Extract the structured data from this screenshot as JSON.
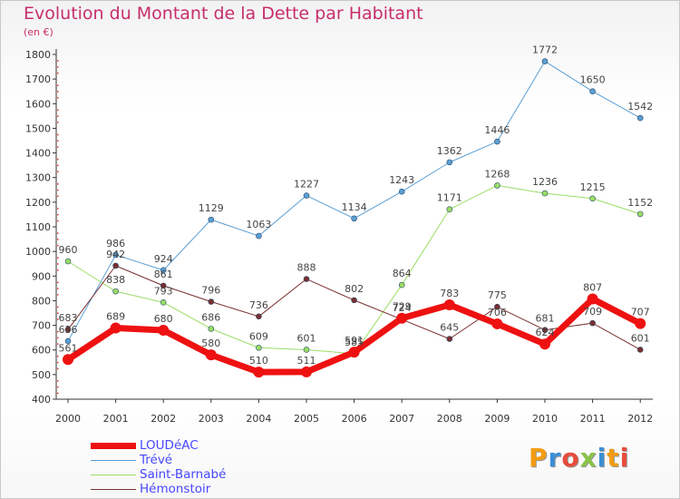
{
  "title": "Evolution du Montant de la Dette par Habitant",
  "subtitle": "(en €)",
  "brand": {
    "text": "Proxiti",
    "letters": [
      "P",
      "r",
      "o",
      "x",
      "i",
      "t",
      "i"
    ],
    "colors": [
      "#f39c12",
      "#3b8fd6",
      "#e74c3c",
      "#8bc34a",
      "#3b8fd6",
      "#f39c12",
      "#e74c3c"
    ]
  },
  "chart_data": {
    "type": "line",
    "categories": [
      "2000",
      "2001",
      "2002",
      "2003",
      "2004",
      "2005",
      "2006",
      "2007",
      "2008",
      "2009",
      "2010",
      "2011",
      "2012"
    ],
    "ylim": [
      400,
      1800
    ],
    "yticks": [
      400,
      500,
      600,
      700,
      800,
      900,
      1000,
      1100,
      1200,
      1300,
      1400,
      1500,
      1600,
      1700,
      1800
    ],
    "grid": false,
    "legend_position": "bottom-left",
    "series": [
      {
        "name": "LOUDéAC",
        "color": "#ee1111",
        "width": 7,
        "values": [
          561,
          689,
          680,
          580,
          510,
          511,
          591,
          729,
          783,
          706,
          624,
          807,
          707
        ],
        "labels": [
          "561",
          "689",
          "680",
          "580",
          "510",
          "511",
          "591",
          "729",
          "783",
          "706",
          "624",
          "807",
          "707"
        ]
      },
      {
        "name": "Trévé",
        "color": "#5a9fd4",
        "width": 1,
        "values": [
          636,
          986,
          924,
          1129,
          1063,
          1227,
          1134,
          1243,
          1362,
          1446,
          1772,
          1650,
          1542
        ],
        "labels": [
          "636",
          "986",
          "924",
          "1129",
          "1063",
          "1227",
          "1134",
          "1243",
          "1362",
          "1446",
          "1772",
          "1650",
          "1542"
        ]
      },
      {
        "name": "Saint-Barnabé",
        "color": "#99dd66",
        "width": 1,
        "values": [
          960,
          838,
          793,
          686,
          609,
          601,
          585,
          864,
          1171,
          1268,
          1236,
          1215,
          1152
        ],
        "labels": [
          "960",
          "838",
          "793",
          "686",
          "609",
          "601",
          "585",
          "864",
          "1171",
          "1268",
          "1236",
          "1215",
          "1152"
        ]
      },
      {
        "name": "Hémonstoir",
        "color": "#7a2f2f",
        "width": 1,
        "values": [
          683,
          942,
          861,
          796,
          736,
          888,
          802,
          724,
          645,
          775,
          681,
          709,
          601
        ],
        "labels": [
          "683",
          "942",
          "861",
          "796",
          "736",
          "888",
          "802",
          "724",
          "645",
          "775",
          "681",
          "709",
          "601"
        ]
      }
    ]
  }
}
